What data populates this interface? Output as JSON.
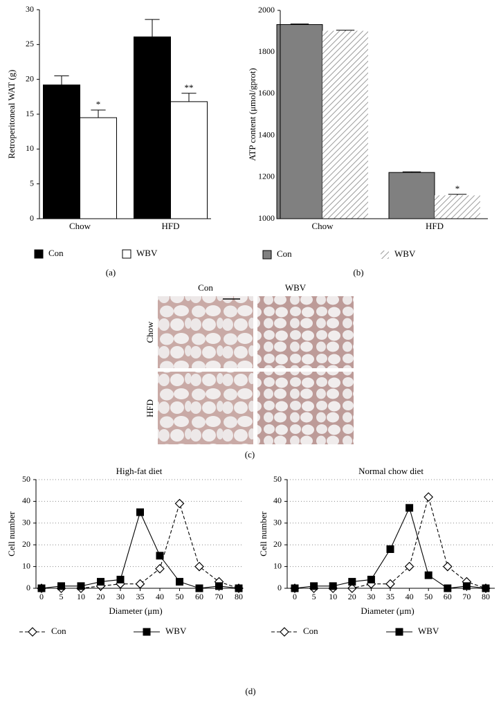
{
  "chart_data": [
    {
      "type": "bar",
      "ylabel": "Retroperitoneal WAT (g)",
      "categories": [
        "Chow",
        "HFD"
      ],
      "series": [
        {
          "name": "Con",
          "color": "#000000",
          "values": [
            19.2,
            26.1
          ],
          "errors": [
            1.3,
            2.5
          ],
          "annotations": [
            null,
            null
          ]
        },
        {
          "name": "WBV",
          "color": "#ffffff",
          "values": [
            14.5,
            16.8
          ],
          "errors": [
            1.1,
            1.2
          ],
          "annotations": [
            "*",
            "**"
          ]
        }
      ],
      "ylim": [
        0,
        30
      ],
      "yticks": [
        0,
        5,
        10,
        15,
        20,
        25,
        30
      ],
      "panel_label": "(a)"
    },
    {
      "type": "bar",
      "ylabel": "ATP content (μmol/gprot)",
      "categories": [
        "Chow",
        "HFD"
      ],
      "series": [
        {
          "name": "Con",
          "color": "#808080",
          "values": [
            1932,
            1222
          ],
          "errors": [
            3,
            3
          ],
          "annotations": [
            null,
            null
          ]
        },
        {
          "name": "WBV",
          "color": "#808080",
          "hatch": true,
          "values": [
            1902,
            1112
          ],
          "errors": [
            3,
            5
          ],
          "annotations": [
            null,
            "*"
          ]
        }
      ],
      "ylim": [
        1000,
        2000
      ],
      "yticks": [
        1000,
        1200,
        1400,
        1600,
        1800,
        2000
      ],
      "panel_label": "(b)"
    },
    {
      "type": "line",
      "title": "High-fat diet",
      "xlabel": "Diameter (μm)",
      "ylabel": "Cell number",
      "categories": [
        "0",
        "5",
        "10",
        "20",
        "30",
        "35",
        "40",
        "50",
        "60",
        "70",
        "80"
      ],
      "series": [
        {
          "name": "Con",
          "color": "#000000",
          "marker": "diamond",
          "dashed": true,
          "values": [
            0,
            0,
            0,
            1,
            2,
            2,
            9,
            39,
            10,
            3,
            0
          ]
        },
        {
          "name": "WBV",
          "color": "#000000",
          "marker": "square",
          "dashed": false,
          "values": [
            0,
            1,
            1,
            3,
            4,
            35,
            15,
            3,
            0,
            1,
            0
          ]
        }
      ],
      "ylim": [
        0,
        50
      ],
      "yticks": [
        0,
        10,
        20,
        30,
        40,
        50
      ],
      "grid": true
    },
    {
      "type": "line",
      "title": "Normal chow diet",
      "xlabel": "Diameter (μm)",
      "ylabel": "Cell number",
      "categories": [
        "0",
        "5",
        "10",
        "20",
        "30",
        "35",
        "40",
        "50",
        "60",
        "70",
        "80"
      ],
      "series": [
        {
          "name": "Con",
          "color": "#000000",
          "marker": "diamond",
          "dashed": true,
          "values": [
            0,
            0,
            0,
            0,
            2,
            2,
            10,
            42,
            10,
            3,
            0
          ]
        },
        {
          "name": "WBV",
          "color": "#000000",
          "marker": "square",
          "dashed": false,
          "values": [
            0,
            1,
            1,
            3,
            4,
            18,
            37,
            6,
            0,
            1,
            0
          ]
        }
      ],
      "ylim": [
        0,
        50
      ],
      "yticks": [
        0,
        10,
        20,
        30,
        40,
        50
      ],
      "grid": true
    }
  ],
  "micrographs": {
    "columns": [
      "Con",
      "WBV"
    ],
    "rows": [
      "Chow",
      "HFD"
    ],
    "panel_label": "(c)"
  },
  "line_panel_label": "(d)"
}
